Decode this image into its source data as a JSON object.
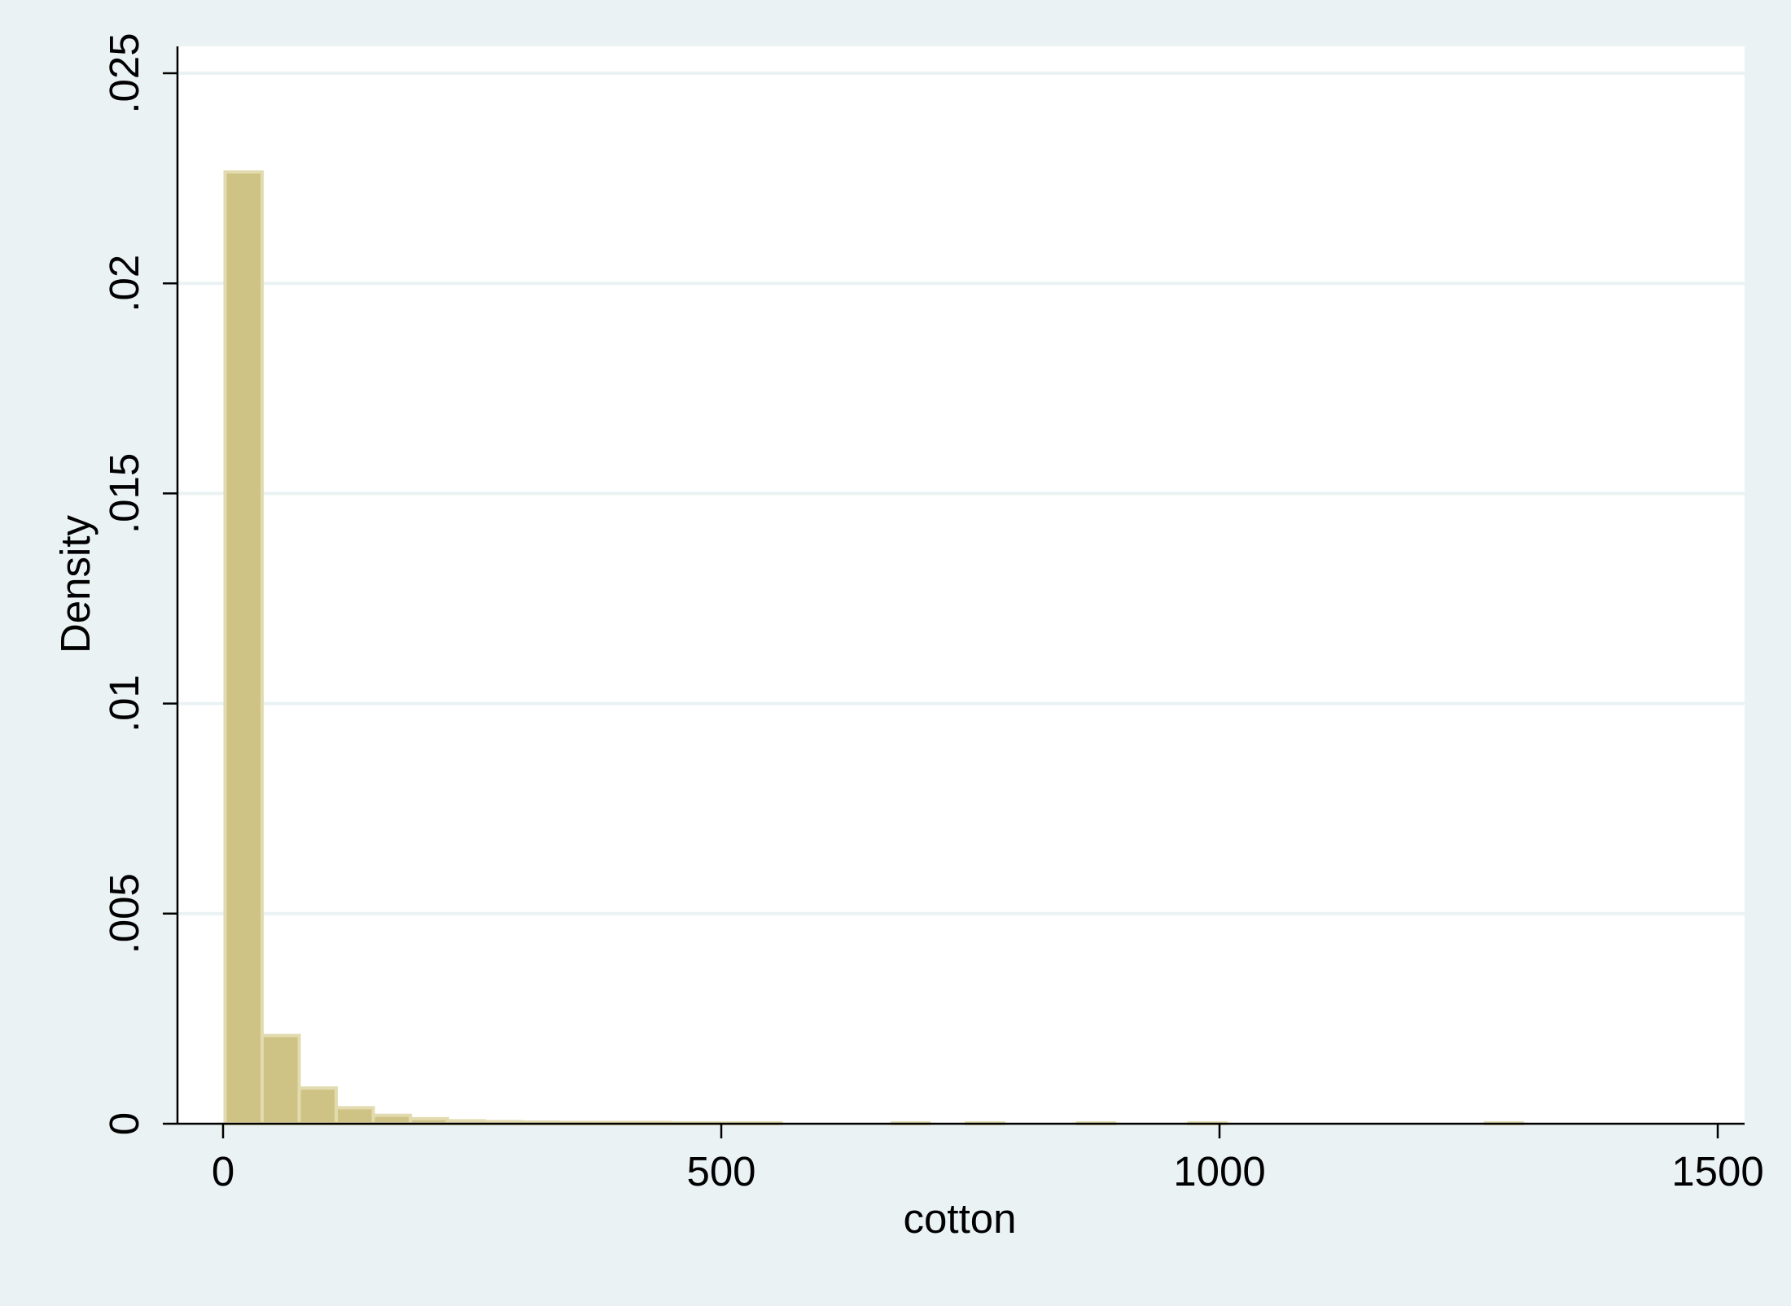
{
  "chart_data": {
    "type": "bar",
    "subtype": "histogram",
    "xlabel": "cotton",
    "ylabel": "Density",
    "xlim": [
      -50,
      1520
    ],
    "ylim": [
      0,
      0.0251
    ],
    "xticks": [
      0,
      500,
      1000,
      1500
    ],
    "xtick_labels": [
      "0",
      "500",
      "1000",
      "1500"
    ],
    "yticks": [
      0,
      0.005,
      0.01,
      0.015,
      0.02,
      0.025
    ],
    "ytick_labels": [
      "0",
      ".005",
      ".01",
      ".015",
      ".02",
      ".025"
    ],
    "grid": true,
    "bar_color": "#cec384",
    "bar_edge_color": "#e3dbb0",
    "plot_background": "#ffffff",
    "outer_background": "#eaf2f3",
    "bin_width": 37.2,
    "bins": [
      {
        "start": 2,
        "end": 39.2,
        "density": 0.02265
      },
      {
        "start": 39.2,
        "end": 76.4,
        "density": 0.0021
      },
      {
        "start": 76.4,
        "end": 113.6,
        "density": 0.00085
      },
      {
        "start": 113.6,
        "end": 150.8,
        "density": 0.00038
      },
      {
        "start": 150.8,
        "end": 188,
        "density": 0.0002
      },
      {
        "start": 188,
        "end": 225.2,
        "density": 0.00012
      },
      {
        "start": 225.2,
        "end": 262.4,
        "density": 7e-05
      },
      {
        "start": 262.4,
        "end": 299.6,
        "density": 5e-05
      },
      {
        "start": 299.6,
        "end": 336.8,
        "density": 4e-05
      },
      {
        "start": 336.8,
        "end": 374,
        "density": 3e-05
      },
      {
        "start": 374,
        "end": 411.2,
        "density": 3e-05
      },
      {
        "start": 411.2,
        "end": 448.4,
        "density": 3e-05
      },
      {
        "start": 448.4,
        "end": 485.6,
        "density": 2e-05
      },
      {
        "start": 485.6,
        "end": 522.8,
        "density": 2e-05
      },
      {
        "start": 522.8,
        "end": 560,
        "density": 2e-05
      },
      {
        "start": 671.6,
        "end": 708.8,
        "density": 2e-05
      },
      {
        "start": 746,
        "end": 783.2,
        "density": 2e-05
      },
      {
        "start": 857.6,
        "end": 894.8,
        "density": 2e-05
      },
      {
        "start": 969.2,
        "end": 1006.4,
        "density": 2e-05
      },
      {
        "start": 1266.8,
        "end": 1304,
        "density": 2e-05
      }
    ]
  }
}
